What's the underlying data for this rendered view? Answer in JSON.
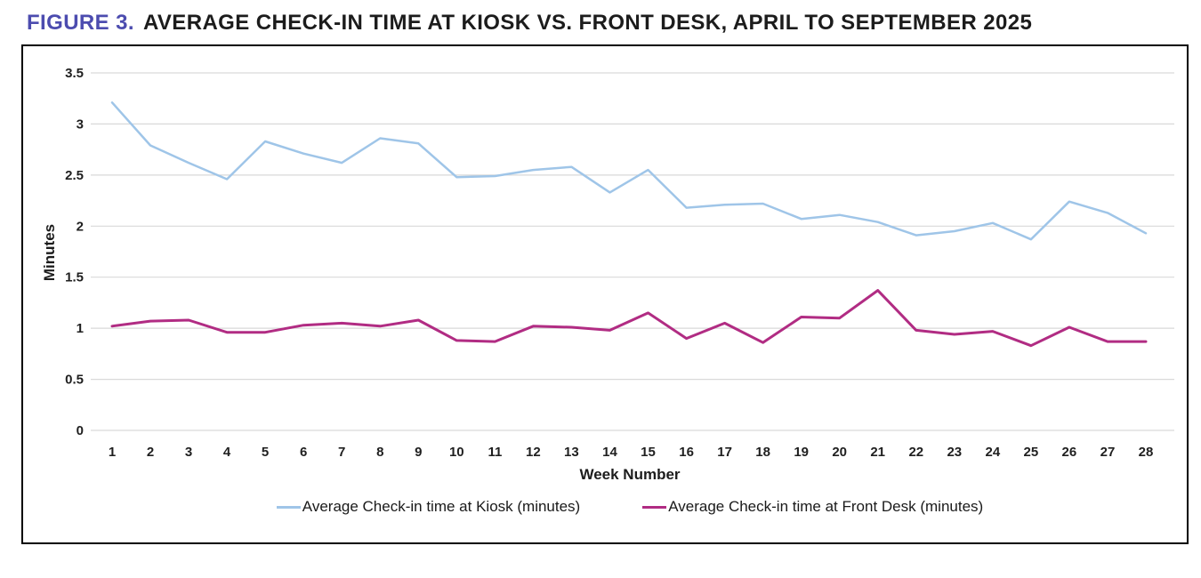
{
  "title": {
    "prefix": "FIGURE 3.",
    "text": "AVERAGE CHECK-IN TIME AT KIOSK VS. FRONT DESK, APRIL TO SEPTEMBER 2025"
  },
  "colors": {
    "title_accent": "#4c4caf",
    "title_text": "#1c1c1c",
    "gridline": "#d9d9d9",
    "tick_text": "#1f1f1f",
    "kiosk_line": "#9fc5e8",
    "front_desk_line": "#b12c83"
  },
  "chart_data": {
    "type": "line",
    "title": "Average check-in time at Kiosk vs. Front Desk, April to September 2025",
    "xlabel": "Week Number",
    "ylabel": "Minutes",
    "x": [
      1,
      2,
      3,
      4,
      5,
      6,
      7,
      8,
      9,
      10,
      11,
      12,
      13,
      14,
      15,
      16,
      17,
      18,
      19,
      20,
      21,
      22,
      23,
      24,
      25,
      26,
      27,
      28
    ],
    "yticks": [
      0,
      0.5,
      1,
      1.5,
      2,
      2.5,
      3,
      3.5
    ],
    "ytick_labels": [
      "0",
      "0.5",
      "1",
      "1.5",
      "2",
      "2.5",
      "3",
      "3.5"
    ],
    "ylim": [
      0,
      3.5
    ],
    "grid": "horizontal",
    "legend_position": "bottom",
    "series": [
      {
        "id": "kiosk",
        "name": "Average Check-in time at Kiosk (minutes)",
        "color": "#9fc5e8",
        "values": [
          3.21,
          2.79,
          2.62,
          2.46,
          2.83,
          2.71,
          2.62,
          2.86,
          2.81,
          2.48,
          2.49,
          2.55,
          2.58,
          2.33,
          2.55,
          2.18,
          2.21,
          2.22,
          2.07,
          2.11,
          2.04,
          1.91,
          1.95,
          2.03,
          1.87,
          2.24,
          2.13,
          1.93
        ]
      },
      {
        "id": "front-desk",
        "name": "Average Check-in time at Front Desk (minutes)",
        "color": "#b12c83",
        "values": [
          1.02,
          1.07,
          1.08,
          0.96,
          0.96,
          1.03,
          1.05,
          1.02,
          1.08,
          0.88,
          0.87,
          1.02,
          1.01,
          0.98,
          1.15,
          0.9,
          1.05,
          0.86,
          1.11,
          1.1,
          1.37,
          0.98,
          0.94,
          0.97,
          0.83,
          1.01,
          0.87,
          0.87
        ]
      }
    ]
  }
}
